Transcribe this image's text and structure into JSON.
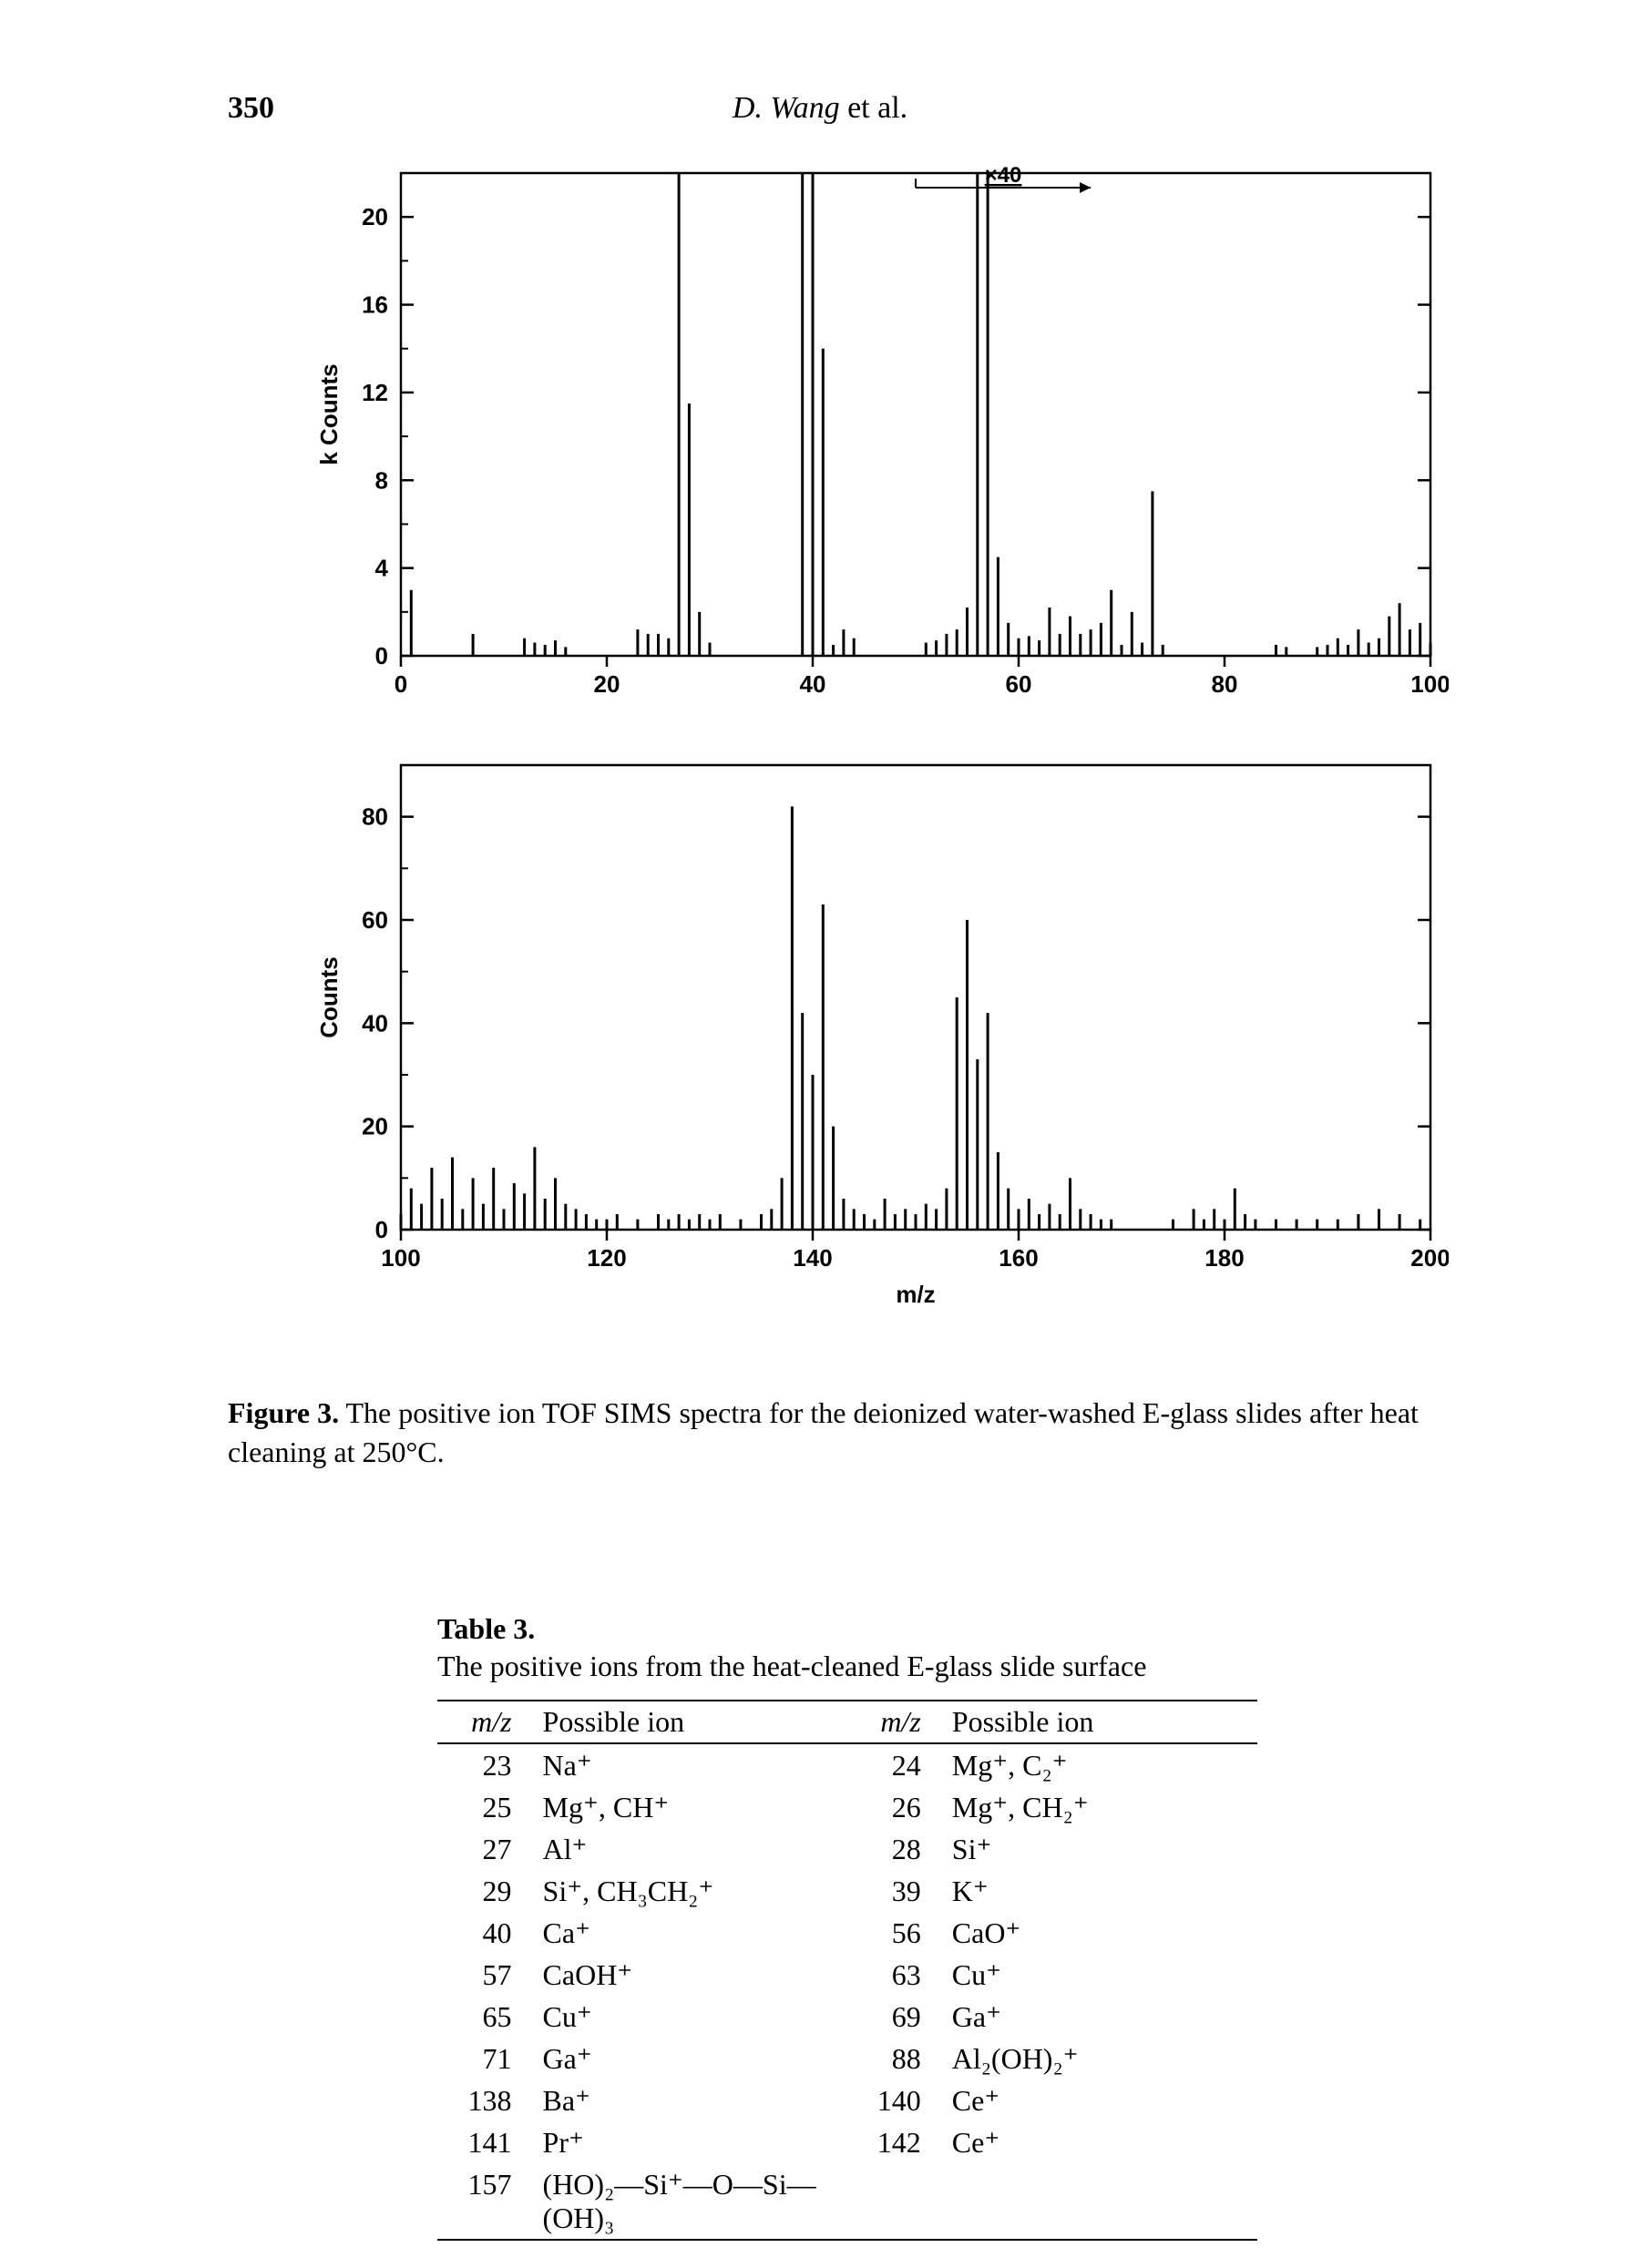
{
  "page_number": "350",
  "running_head_author": "D. Wang",
  "running_head_suffix": " et al.",
  "figure_caption_prefix": "Figure 3.",
  "figure_caption_text": " The positive ion TOF SIMS spectra for the deionized water-washed E-glass slides after heat cleaning at 250°C.",
  "table_title_line1": "Table 3.",
  "table_title_line2": "The positive ions from the heat-cleaned E-glass slide surface",
  "table_headers": {
    "mz": "m/z",
    "ion": "Possible ion"
  },
  "table_rows": [
    {
      "mz1": "23",
      "ion1": "Na⁺",
      "mz2": "24",
      "ion2": "Mg⁺, C₂⁺"
    },
    {
      "mz1": "25",
      "ion1": "Mg⁺, CH⁺",
      "mz2": "26",
      "ion2": "Mg⁺, CH₂⁺"
    },
    {
      "mz1": "27",
      "ion1": "Al⁺",
      "mz2": "28",
      "ion2": "Si⁺"
    },
    {
      "mz1": "29",
      "ion1": "Si⁺, CH₃CH₂⁺",
      "mz2": "39",
      "ion2": "K⁺"
    },
    {
      "mz1": "40",
      "ion1": "Ca⁺",
      "mz2": "56",
      "ion2": "CaO⁺"
    },
    {
      "mz1": "57",
      "ion1": "CaOH⁺",
      "mz2": "63",
      "ion2": "Cu⁺"
    },
    {
      "mz1": "65",
      "ion1": "Cu⁺",
      "mz2": "69",
      "ion2": "Ga⁺"
    },
    {
      "mz1": "71",
      "ion1": "Ga⁺",
      "mz2": "88",
      "ion2": "Al₂(OH)₂⁺"
    },
    {
      "mz1": "138",
      "ion1": "Ba⁺",
      "mz2": "140",
      "ion2": "Ce⁺"
    },
    {
      "mz1": "141",
      "ion1": "Pr⁺",
      "mz2": "142",
      "ion2": "Ce⁺"
    },
    {
      "mz1": "157",
      "ion1": "(HO)₂—Si⁺—O—Si—(OH)₃",
      "mz2": "",
      "ion2": ""
    }
  ],
  "chart_top": {
    "type": "mass-spectrum",
    "xlim": [
      0,
      100
    ],
    "ylim": [
      0,
      22
    ],
    "xticks": [
      0,
      20,
      40,
      60,
      80,
      100
    ],
    "yticks": [
      0,
      4,
      8,
      12,
      16,
      20
    ],
    "ylabel": "k Counts",
    "inset_label": "×40",
    "inset_range": [
      50,
      67
    ],
    "axis_color": "#000000",
    "line_width": 2.5,
    "label_fontsize": 26,
    "tick_fontsize": 26,
    "peaks": [
      {
        "mz": 1,
        "h": 3.0
      },
      {
        "mz": 7,
        "h": 1.0
      },
      {
        "mz": 12,
        "h": 0.8
      },
      {
        "mz": 13,
        "h": 0.6
      },
      {
        "mz": 14,
        "h": 0.5
      },
      {
        "mz": 15,
        "h": 0.7
      },
      {
        "mz": 16,
        "h": 0.4
      },
      {
        "mz": 23,
        "h": 1.2
      },
      {
        "mz": 24,
        "h": 1.0
      },
      {
        "mz": 25,
        "h": 1.0
      },
      {
        "mz": 26,
        "h": 0.8
      },
      {
        "mz": 27,
        "h": 22.0
      },
      {
        "mz": 28,
        "h": 11.5
      },
      {
        "mz": 29,
        "h": 2.0
      },
      {
        "mz": 30,
        "h": 0.6
      },
      {
        "mz": 39,
        "h": 22.0
      },
      {
        "mz": 40,
        "h": 22.0
      },
      {
        "mz": 41,
        "h": 14.0
      },
      {
        "mz": 42,
        "h": 0.5
      },
      {
        "mz": 43,
        "h": 1.2
      },
      {
        "mz": 44,
        "h": 0.8
      },
      {
        "mz": 51,
        "h": 0.6
      },
      {
        "mz": 52,
        "h": 0.7
      },
      {
        "mz": 53,
        "h": 1.0
      },
      {
        "mz": 54,
        "h": 1.2
      },
      {
        "mz": 55,
        "h": 2.2
      },
      {
        "mz": 56,
        "h": 22.0
      },
      {
        "mz": 57,
        "h": 22.0
      },
      {
        "mz": 58,
        "h": 4.5
      },
      {
        "mz": 59,
        "h": 1.5
      },
      {
        "mz": 60,
        "h": 0.8
      },
      {
        "mz": 61,
        "h": 0.9
      },
      {
        "mz": 62,
        "h": 0.7
      },
      {
        "mz": 63,
        "h": 2.2
      },
      {
        "mz": 64,
        "h": 1.0
      },
      {
        "mz": 65,
        "h": 1.8
      },
      {
        "mz": 66,
        "h": 1.0
      },
      {
        "mz": 67,
        "h": 1.2
      },
      {
        "mz": 68,
        "h": 1.5
      },
      {
        "mz": 69,
        "h": 3.0
      },
      {
        "mz": 70,
        "h": 0.5
      },
      {
        "mz": 71,
        "h": 2.0
      },
      {
        "mz": 72,
        "h": 0.6
      },
      {
        "mz": 73,
        "h": 7.5
      },
      {
        "mz": 74,
        "h": 0.5
      },
      {
        "mz": 85,
        "h": 0.5
      },
      {
        "mz": 86,
        "h": 0.4
      },
      {
        "mz": 89,
        "h": 0.4
      },
      {
        "mz": 90,
        "h": 0.5
      },
      {
        "mz": 91,
        "h": 0.8
      },
      {
        "mz": 92,
        "h": 0.5
      },
      {
        "mz": 93,
        "h": 1.2
      },
      {
        "mz": 94,
        "h": 0.6
      },
      {
        "mz": 95,
        "h": 0.8
      },
      {
        "mz": 96,
        "h": 1.8
      },
      {
        "mz": 97,
        "h": 2.4
      },
      {
        "mz": 98,
        "h": 1.2
      },
      {
        "mz": 99,
        "h": 1.5
      },
      {
        "mz": 100,
        "h": 0.6
      }
    ]
  },
  "chart_bot": {
    "type": "mass-spectrum",
    "xlim": [
      100,
      200
    ],
    "ylim": [
      0,
      90
    ],
    "xticks": [
      100,
      120,
      140,
      160,
      180,
      200
    ],
    "yticks": [
      0,
      20,
      40,
      60,
      80
    ],
    "xlabel": "m/z",
    "ylabel": "Counts",
    "axis_color": "#000000",
    "line_width": 2.5,
    "label_fontsize": 26,
    "tick_fontsize": 26,
    "peaks": [
      {
        "mz": 100,
        "h": 3
      },
      {
        "mz": 101,
        "h": 8
      },
      {
        "mz": 102,
        "h": 5
      },
      {
        "mz": 103,
        "h": 12
      },
      {
        "mz": 104,
        "h": 6
      },
      {
        "mz": 105,
        "h": 14
      },
      {
        "mz": 106,
        "h": 4
      },
      {
        "mz": 107,
        "h": 10
      },
      {
        "mz": 108,
        "h": 5
      },
      {
        "mz": 109,
        "h": 12
      },
      {
        "mz": 110,
        "h": 4
      },
      {
        "mz": 111,
        "h": 9
      },
      {
        "mz": 112,
        "h": 7
      },
      {
        "mz": 113,
        "h": 16
      },
      {
        "mz": 114,
        "h": 6
      },
      {
        "mz": 115,
        "h": 10
      },
      {
        "mz": 116,
        "h": 5
      },
      {
        "mz": 117,
        "h": 4
      },
      {
        "mz": 118,
        "h": 3
      },
      {
        "mz": 119,
        "h": 2
      },
      {
        "mz": 120,
        "h": 2
      },
      {
        "mz": 121,
        "h": 3
      },
      {
        "mz": 123,
        "h": 2
      },
      {
        "mz": 125,
        "h": 3
      },
      {
        "mz": 126,
        "h": 2
      },
      {
        "mz": 127,
        "h": 3
      },
      {
        "mz": 128,
        "h": 2
      },
      {
        "mz": 129,
        "h": 3
      },
      {
        "mz": 130,
        "h": 2
      },
      {
        "mz": 131,
        "h": 3
      },
      {
        "mz": 133,
        "h": 2
      },
      {
        "mz": 135,
        "h": 3
      },
      {
        "mz": 136,
        "h": 4
      },
      {
        "mz": 137,
        "h": 10
      },
      {
        "mz": 138,
        "h": 82
      },
      {
        "mz": 139,
        "h": 42
      },
      {
        "mz": 140,
        "h": 30
      },
      {
        "mz": 141,
        "h": 63
      },
      {
        "mz": 142,
        "h": 20
      },
      {
        "mz": 143,
        "h": 6
      },
      {
        "mz": 144,
        "h": 4
      },
      {
        "mz": 145,
        "h": 3
      },
      {
        "mz": 146,
        "h": 2
      },
      {
        "mz": 147,
        "h": 6
      },
      {
        "mz": 148,
        "h": 3
      },
      {
        "mz": 149,
        "h": 4
      },
      {
        "mz": 150,
        "h": 3
      },
      {
        "mz": 151,
        "h": 5
      },
      {
        "mz": 152,
        "h": 4
      },
      {
        "mz": 153,
        "h": 8
      },
      {
        "mz": 154,
        "h": 45
      },
      {
        "mz": 155,
        "h": 60
      },
      {
        "mz": 156,
        "h": 33
      },
      {
        "mz": 157,
        "h": 42
      },
      {
        "mz": 158,
        "h": 15
      },
      {
        "mz": 159,
        "h": 8
      },
      {
        "mz": 160,
        "h": 4
      },
      {
        "mz": 161,
        "h": 6
      },
      {
        "mz": 162,
        "h": 3
      },
      {
        "mz": 163,
        "h": 5
      },
      {
        "mz": 164,
        "h": 3
      },
      {
        "mz": 165,
        "h": 10
      },
      {
        "mz": 166,
        "h": 4
      },
      {
        "mz": 167,
        "h": 3
      },
      {
        "mz": 168,
        "h": 2
      },
      {
        "mz": 169,
        "h": 2
      },
      {
        "mz": 175,
        "h": 2
      },
      {
        "mz": 177,
        "h": 4
      },
      {
        "mz": 178,
        "h": 2
      },
      {
        "mz": 179,
        "h": 4
      },
      {
        "mz": 180,
        "h": 2
      },
      {
        "mz": 181,
        "h": 8
      },
      {
        "mz": 182,
        "h": 3
      },
      {
        "mz": 183,
        "h": 2
      },
      {
        "mz": 185,
        "h": 2
      },
      {
        "mz": 187,
        "h": 2
      },
      {
        "mz": 189,
        "h": 2
      },
      {
        "mz": 191,
        "h": 2
      },
      {
        "mz": 193,
        "h": 3
      },
      {
        "mz": 195,
        "h": 4
      },
      {
        "mz": 197,
        "h": 3
      },
      {
        "mz": 199,
        "h": 2
      }
    ]
  }
}
